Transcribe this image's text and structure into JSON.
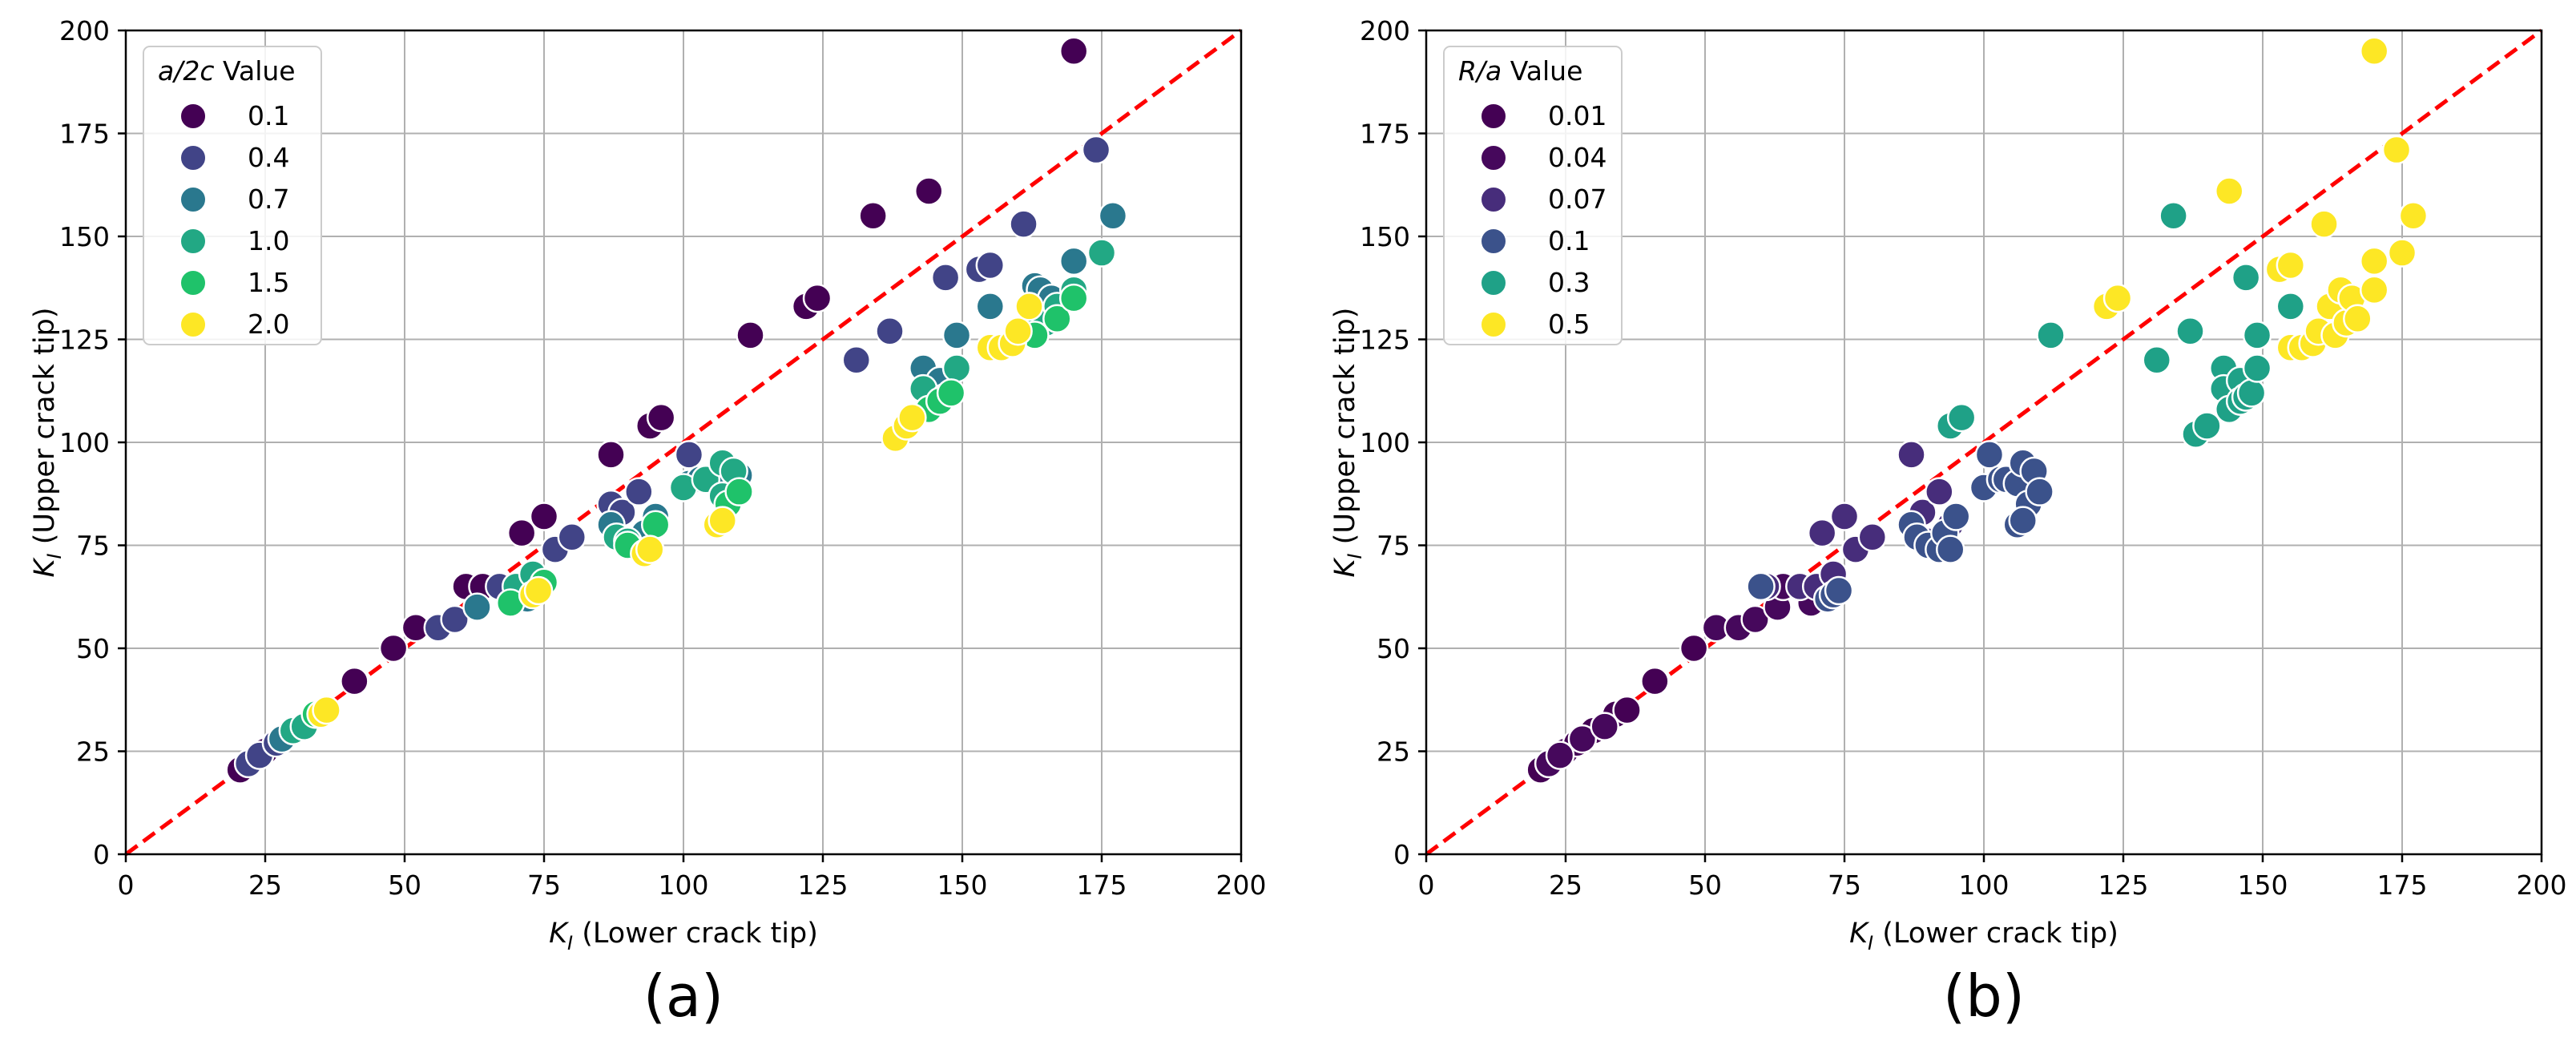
{
  "chart_data": [
    {
      "type": "scatter",
      "panel_label": "(a)",
      "xlabel_sym": "K",
      "xlabel_sub": "I",
      "xlabel_rest": " (Lower crack tip)",
      "ylabel_sym": "K",
      "ylabel_sub": "I",
      "ylabel_rest": " (Upper crack tip)",
      "xlim": [
        0,
        200
      ],
      "ylim": [
        0,
        200
      ],
      "xticks": [
        0,
        25,
        50,
        75,
        100,
        125,
        150,
        175,
        200
      ],
      "yticks": [
        0,
        25,
        50,
        75,
        100,
        125,
        150,
        175,
        200
      ],
      "grid": true,
      "reference_line": {
        "from": [
          0,
          0
        ],
        "to": [
          200,
          200
        ],
        "color": "#ff0000",
        "style": "dashed"
      },
      "legend": {
        "placement": "top-left",
        "title_italic": "a/2c",
        "title_rest": " Value",
        "entries": [
          "0.1",
          "0.4",
          "0.7",
          "1.0",
          "1.5",
          "2.0"
        ],
        "colors": [
          "#440154",
          "#414487",
          "#2a788e",
          "#22a884",
          "#1fc26a",
          "#fde725"
        ]
      },
      "series": [
        {
          "name": "0.1",
          "color": "#440154",
          "points": [
            [
              20.5,
              20.5
            ],
            [
              23,
              23
            ],
            [
              25,
              25
            ],
            [
              41,
              42
            ],
            [
              48,
              50
            ],
            [
              52,
              55
            ],
            [
              61,
              65
            ],
            [
              64,
              65
            ],
            [
              71,
              78
            ],
            [
              75,
              82
            ],
            [
              87,
              97
            ],
            [
              94,
              104
            ],
            [
              96,
              106
            ],
            [
              112,
              126
            ],
            [
              122,
              133
            ],
            [
              124,
              135
            ],
            [
              134,
              155
            ],
            [
              144,
              161
            ],
            [
              170,
              195
            ]
          ]
        },
        {
          "name": "0.4",
          "color": "#414487",
          "points": [
            [
              22,
              22
            ],
            [
              24,
              24
            ],
            [
              27,
              27
            ],
            [
              56,
              55
            ],
            [
              59,
              57
            ],
            [
              67,
              65
            ],
            [
              77,
              74
            ],
            [
              80,
              77
            ],
            [
              87,
              85
            ],
            [
              89,
              83
            ],
            [
              92,
              88
            ],
            [
              101,
              97
            ],
            [
              131,
              120
            ],
            [
              137,
              127
            ],
            [
              147,
              140
            ],
            [
              153,
              142
            ],
            [
              155,
              143
            ],
            [
              161,
              153
            ],
            [
              174,
              171
            ]
          ]
        },
        {
          "name": "0.7",
          "color": "#2a788e",
          "points": [
            [
              28,
              28
            ],
            [
              63,
              60
            ],
            [
              72,
              62
            ],
            [
              87,
              80
            ],
            [
              93,
              78
            ],
            [
              95,
              82
            ],
            [
              101,
              90
            ],
            [
              103,
              91
            ],
            [
              106,
              90
            ],
            [
              143,
              118
            ],
            [
              146,
              115
            ],
            [
              149,
              126
            ],
            [
              155,
              133
            ],
            [
              163,
              138
            ],
            [
              164,
              137
            ],
            [
              166,
              135
            ],
            [
              170,
              144
            ],
            [
              177,
              155
            ],
            [
              110,
              92
            ]
          ]
        },
        {
          "name": "1.0",
          "color": "#22a884",
          "points": [
            [
              30,
              30
            ],
            [
              32,
              31
            ],
            [
              70,
              65
            ],
            [
              73,
              68
            ],
            [
              88,
              77
            ],
            [
              90,
              76
            ],
            [
              100,
              89
            ],
            [
              104,
              91
            ],
            [
              107,
              95
            ],
            [
              109,
              93
            ],
            [
              107,
              87
            ],
            [
              143,
              113
            ],
            [
              147,
              111
            ],
            [
              149,
              118
            ],
            [
              163,
              130
            ],
            [
              165,
              129
            ],
            [
              167,
              133
            ],
            [
              170,
              137
            ],
            [
              175,
              146
            ]
          ]
        },
        {
          "name": "1.5",
          "color": "#1fc26a",
          "points": [
            [
              34,
              34
            ],
            [
              69,
              61
            ],
            [
              75,
              66
            ],
            [
              90,
              75
            ],
            [
              95,
              80
            ],
            [
              108,
              85
            ],
            [
              110,
              88
            ],
            [
              144,
              108
            ],
            [
              146,
              110
            ],
            [
              148,
              112
            ],
            [
              163,
              126
            ],
            [
              167,
              130
            ],
            [
              170,
              135
            ]
          ]
        },
        {
          "name": "2.0",
          "color": "#fde725",
          "points": [
            [
              35,
              34
            ],
            [
              36,
              35
            ],
            [
              73,
              63
            ],
            [
              74,
              64
            ],
            [
              93,
              73
            ],
            [
              94,
              74
            ],
            [
              106,
              80
            ],
            [
              107,
              81
            ],
            [
              138,
              101
            ],
            [
              140,
              104
            ],
            [
              141,
              106
            ],
            [
              155,
              123
            ],
            [
              157,
              123
            ],
            [
              159,
              124
            ],
            [
              160,
              127
            ],
            [
              162,
              133
            ]
          ]
        }
      ]
    },
    {
      "type": "scatter",
      "panel_label": "(b)",
      "xlabel_sym": "K",
      "xlabel_sub": "I",
      "xlabel_rest": " (Lower crack tip)",
      "ylabel_sym": "K",
      "ylabel_sub": "I",
      "ylabel_rest": " (Upper crack tip)",
      "xlim": [
        0,
        200
      ],
      "ylim": [
        0,
        200
      ],
      "xticks": [
        0,
        25,
        50,
        75,
        100,
        125,
        150,
        175,
        200
      ],
      "yticks": [
        0,
        25,
        50,
        75,
        100,
        125,
        150,
        175,
        200
      ],
      "grid": true,
      "reference_line": {
        "from": [
          0,
          0
        ],
        "to": [
          200,
          200
        ],
        "color": "#ff0000",
        "style": "dashed"
      },
      "legend": {
        "placement": "top-left",
        "title_italic": "R/a",
        "title_rest": " Value",
        "entries": [
          "0.01",
          "0.04",
          "0.07",
          "0.1",
          "0.3",
          "0.5"
        ],
        "colors": [
          "#440154",
          "#46085c",
          "#472d7b",
          "#3b528b",
          "#1fa187",
          "#fde725"
        ]
      },
      "series": [
        {
          "name": "0.01",
          "color": "#440154",
          "points": [
            [
              20.5,
              20.5
            ],
            [
              23,
              23
            ],
            [
              25,
              25
            ],
            [
              27,
              27
            ],
            [
              30,
              30
            ],
            [
              34,
              34
            ],
            [
              36,
              35
            ],
            [
              41,
              42
            ],
            [
              48,
              50
            ]
          ]
        },
        {
          "name": "0.04",
          "color": "#46085c",
          "points": [
            [
              22,
              22
            ],
            [
              24,
              24
            ],
            [
              28,
              28
            ],
            [
              32,
              31
            ],
            [
              52,
              55
            ],
            [
              56,
              55
            ],
            [
              59,
              57
            ],
            [
              63,
              60
            ],
            [
              64,
              65
            ],
            [
              69,
              61
            ]
          ]
        },
        {
          "name": "0.07",
          "color": "#472d7b",
          "points": [
            [
              61,
              65
            ],
            [
              67,
              65
            ],
            [
              70,
              65
            ],
            [
              71,
              78
            ],
            [
              73,
              68
            ],
            [
              75,
              82
            ],
            [
              77,
              74
            ],
            [
              80,
              77
            ],
            [
              87,
              97
            ],
            [
              89,
              83
            ],
            [
              90,
              76
            ],
            [
              92,
              88
            ],
            [
              94,
              80
            ]
          ]
        },
        {
          "name": "0.1",
          "color": "#3b528b",
          "points": [
            [
              60,
              65
            ],
            [
              72,
              62
            ],
            [
              73,
              63
            ],
            [
              74,
              64
            ],
            [
              87,
              80
            ],
            [
              88,
              77
            ],
            [
              90,
              75
            ],
            [
              92,
              74
            ],
            [
              93,
              78
            ],
            [
              94,
              74
            ],
            [
              95,
              82
            ],
            [
              100,
              89
            ],
            [
              101,
              97
            ],
            [
              103,
              91
            ],
            [
              104,
              91
            ],
            [
              106,
              90
            ],
            [
              107,
              95
            ],
            [
              108,
              85
            ],
            [
              109,
              93
            ],
            [
              110,
              88
            ],
            [
              106,
              80
            ],
            [
              107,
              81
            ]
          ]
        },
        {
          "name": "0.3",
          "color": "#1fa187",
          "points": [
            [
              94,
              104
            ],
            [
              96,
              106
            ],
            [
              112,
              126
            ],
            [
              131,
              120
            ],
            [
              134,
              155
            ],
            [
              137,
              127
            ],
            [
              138,
              102
            ],
            [
              140,
              104
            ],
            [
              143,
              118
            ],
            [
              143,
              113
            ],
            [
              144,
              108
            ],
            [
              146,
              115
            ],
            [
              146,
              110
            ],
            [
              147,
              111
            ],
            [
              147,
              140
            ],
            [
              148,
              112
            ],
            [
              149,
              118
            ],
            [
              149,
              126
            ],
            [
              155,
              133
            ]
          ]
        },
        {
          "name": "0.5",
          "color": "#fde725",
          "points": [
            [
              122,
              133
            ],
            [
              124,
              135
            ],
            [
              144,
              161
            ],
            [
              153,
              142
            ],
            [
              155,
              143
            ],
            [
              155,
              123
            ],
            [
              157,
              123
            ],
            [
              159,
              124
            ],
            [
              160,
              127
            ],
            [
              161,
              153
            ],
            [
              162,
              133
            ],
            [
              163,
              126
            ],
            [
              164,
              137
            ],
            [
              165,
              129
            ],
            [
              166,
              135
            ],
            [
              167,
              130
            ],
            [
              170,
              137
            ],
            [
              170,
              144
            ],
            [
              170,
              195
            ],
            [
              174,
              171
            ],
            [
              175,
              146
            ],
            [
              177,
              155
            ]
          ]
        }
      ]
    }
  ]
}
